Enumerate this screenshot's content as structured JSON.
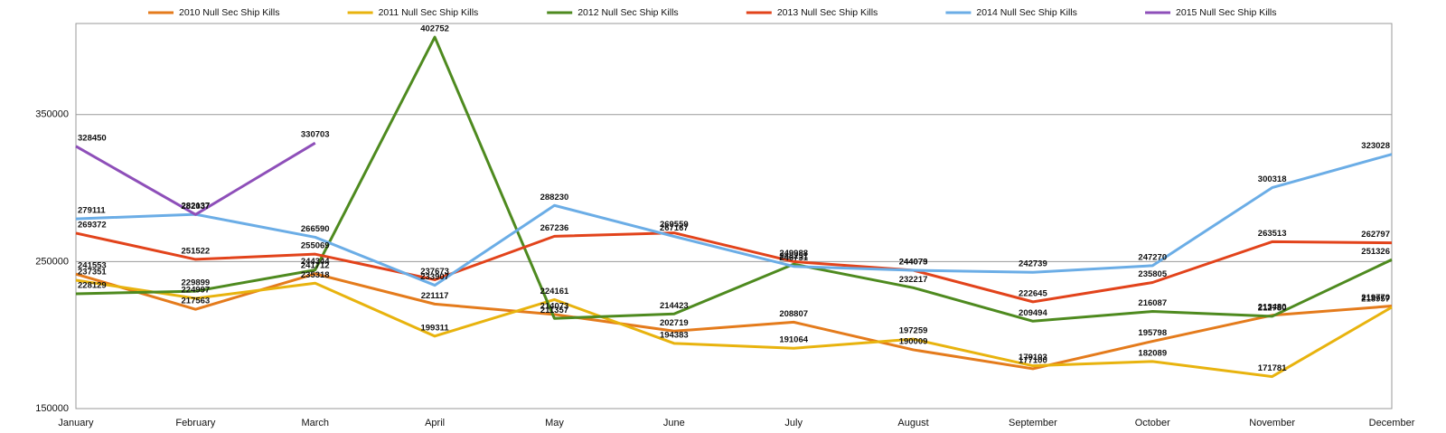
{
  "chart_data": {
    "type": "line",
    "categories": [
      "January",
      "February",
      "March",
      "April",
      "May",
      "June",
      "July",
      "August",
      "September",
      "October",
      "November",
      "December"
    ],
    "ylim": [
      150000,
      412000
    ],
    "yticks": [
      150000,
      250000,
      350000
    ],
    "grid": true,
    "legend": "top",
    "series": [
      {
        "name": "2010 Null Sec Ship Kills",
        "color": "#e47b1c",
        "values": [
          241553,
          217563,
          241712,
          221117,
          214073,
          202719,
          208807,
          190009,
          177100,
          195798,
          213480,
          219770
        ]
      },
      {
        "name": "2011 Null Sec Ship Kills",
        "color": "#e8b30e",
        "values": [
          237351,
          224997,
          235318,
          199311,
          224161,
          194383,
          191064,
          197259,
          179103,
          182089,
          171781,
          218957
        ]
      },
      {
        "name": "2012 Null Sec Ship Kills",
        "color": "#4e8a1f",
        "values": [
          228129,
          229899,
          244344,
          402752,
          211357,
          214423,
          248251,
          232217,
          209494,
          216087,
          212780,
          251326
        ]
      },
      {
        "name": "2013 Null Sec Ship Kills",
        "color": "#e2431b",
        "values": [
          269372,
          251522,
          255069,
          237673,
          267236,
          269559,
          249988,
          244079,
          222645,
          235805,
          263513,
          262797
        ]
      },
      {
        "name": "2014 Null Sec Ship Kills",
        "color": "#6bade6",
        "values": [
          279111,
          282137,
          266590,
          233907,
          288230,
          267167,
          246731,
          244073,
          242739,
          247270,
          300318,
          323028
        ]
      },
      {
        "name": "2015 Null Sec Ship Kills",
        "color": "#8e4fb9",
        "values": [
          328450,
          282037,
          330703,
          null,
          null,
          null,
          null,
          null,
          null,
          null,
          null,
          null
        ]
      }
    ]
  }
}
